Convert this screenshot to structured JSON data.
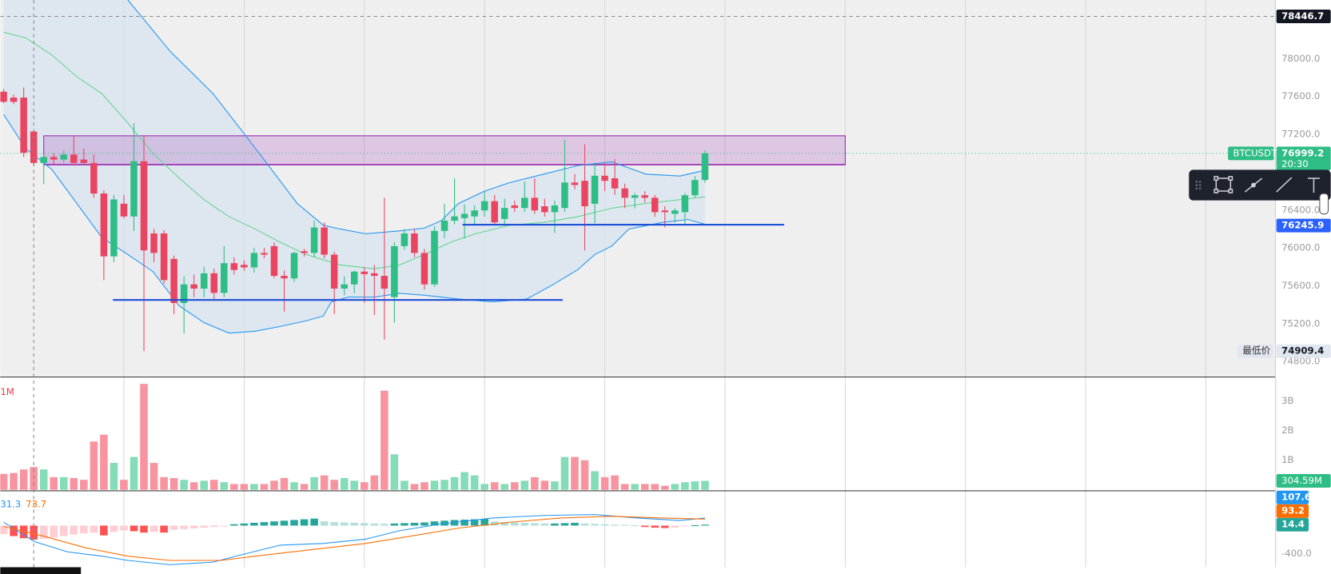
{
  "chart_data": {
    "type": "candlestick",
    "symbol": "BTCUSDT",
    "countdown": "20:30",
    "low_label": "最低价",
    "xlim": [
      -0.34,
      126.95
    ],
    "xticks": [
      12,
      24,
      36,
      48,
      60,
      72,
      84,
      96,
      108,
      120
    ],
    "ylim": [
      74645,
      78620
    ],
    "yticks": [
      {
        "value": 74800,
        "label": "74800.0"
      },
      {
        "value": 75200,
        "label": "75200.0"
      },
      {
        "value": 75600,
        "label": "75600.0"
      },
      {
        "value": 76000,
        "label": "76000.0"
      },
      {
        "value": 76400,
        "label": "76400.0"
      },
      {
        "value": 77200,
        "label": "77200.0"
      },
      {
        "value": 77600,
        "label": "77600.0"
      },
      {
        "value": 78000,
        "label": "78000.0"
      }
    ],
    "colors": {
      "up": "#2ebd85",
      "down": "#ea4560",
      "vol_up": "#84dcb8",
      "vol_down": "#f7949f"
    },
    "candles": {
      "open": [
        77651,
        77589,
        77589,
        77230,
        76898,
        76961,
        76934,
        76987,
        76934,
        76898,
        76575,
        75911,
        76467,
        76333,
        76916,
        76153,
        76153,
        75884,
        75418,
        75615,
        75570,
        75732,
        75525,
        75839,
        75821,
        75794,
        75947,
        76019,
        75705,
        75678,
        75965,
        75947,
        76216,
        75929,
        75570,
        75615,
        75750,
        75732,
        75705,
        75480,
        76019,
        76153,
        75947,
        75615,
        76180,
        76288,
        76315,
        76333,
        76396,
        76494,
        76306,
        76449,
        76422,
        76530,
        76440,
        76378,
        76422,
        76691,
        76709,
        76467,
        76763,
        76736,
        76629,
        76530,
        76557,
        76530,
        76396,
        76360,
        76378,
        76557,
        76718
      ],
      "high": [
        77680,
        77620,
        77696,
        77240,
        76990,
        77000,
        77030,
        77185,
        77050,
        76987,
        76610,
        76560,
        76560,
        77319,
        77185,
        76200,
        76190,
        75920,
        75700,
        75720,
        75800,
        75780,
        76019,
        75900,
        75870,
        76000,
        76000,
        76060,
        75760,
        75960,
        75990,
        76288,
        76270,
        75960,
        75700,
        75760,
        75800,
        75820,
        76530,
        76060,
        76200,
        76200,
        75990,
        76230,
        76467,
        76736,
        76460,
        76450,
        76600,
        76560,
        76520,
        76500,
        76700,
        76736,
        76520,
        76500,
        77140,
        76780,
        77095,
        76900,
        76900,
        76940,
        76680,
        76580,
        76600,
        76560,
        76440,
        76420,
        76580,
        76760,
        77030
      ],
      "low": [
        77530,
        77520,
        76961,
        76870,
        76674,
        76880,
        76900,
        76870,
        76870,
        76530,
        75660,
        75850,
        76310,
        76180,
        74909.4,
        75850,
        75620,
        75301,
        75095,
        75480,
        75480,
        75460,
        75480,
        75720,
        75760,
        75740,
        75890,
        75680,
        75328,
        75640,
        75910,
        75900,
        75890,
        75301,
        75500,
        75520,
        75420,
        75290,
        75032,
        75211,
        75980,
        75900,
        75560,
        75590,
        76100,
        76250,
        76100,
        76250,
        76330,
        76240,
        76250,
        76380,
        76380,
        76360,
        76330,
        76160,
        76380,
        76620,
        75974,
        76260,
        76600,
        76560,
        76420,
        76420,
        76480,
        76330,
        76216,
        76270,
        76240,
        76530,
        76690
      ],
      "close": [
        77544,
        77544,
        77005,
        76898,
        76961,
        76934,
        76987,
        76898,
        76898,
        76575,
        75911,
        76512,
        76333,
        76916,
        75974,
        75947,
        75660,
        75418,
        75615,
        75570,
        75732,
        75525,
        75839,
        75767,
        75794,
        75947,
        75929,
        75705,
        75678,
        75947,
        75947,
        76216,
        75929,
        75570,
        75615,
        75750,
        75723,
        75705,
        75570,
        76019,
        76153,
        75947,
        75615,
        76180,
        76288,
        76333,
        76360,
        76396,
        76494,
        76270,
        76422,
        76422,
        76530,
        76396,
        76378,
        76449,
        76691,
        76665,
        76440,
        76763,
        76709,
        76629,
        76530,
        76557,
        76530,
        76378,
        76378,
        76396,
        76557,
        76718,
        76999.2
      ]
    },
    "indicators": {
      "bb_upper": {
        "color": "#2196f3",
        "x": [
          0,
          6,
          10,
          12.4,
          16.6,
          20.9,
          24.2,
          26.8,
          29.3,
          31.9,
          33.6,
          36.1,
          39.5,
          42,
          43.7,
          45.4,
          48,
          50.5,
          53.9,
          57.3,
          60.7,
          64.1,
          67.5,
          70
        ],
        "values": [
          79500,
          79200,
          78850,
          78620,
          78080,
          77630,
          77180,
          76820,
          76470,
          76240,
          76200,
          76150,
          76180,
          76210,
          76290,
          76470,
          76600,
          76690,
          76780,
          76870,
          76910,
          76780,
          76760,
          76820
        ]
      },
      "bb_lower": {
        "color": "#2196f3",
        "x": [
          0,
          2.2,
          4.8,
          7.3,
          9.8,
          12.4,
          14.9,
          17.5,
          20,
          22.5,
          25.1,
          27.6,
          30.2,
          31.9,
          32.7,
          34.4,
          37,
          39.5,
          42,
          45.4,
          48.8,
          52.2,
          54.8,
          57.3,
          59,
          60.7,
          62.4,
          65.8,
          68.3,
          70
        ],
        "values": [
          77410,
          77050,
          76830,
          76470,
          76110,
          75930,
          75750,
          75390,
          75210,
          75100,
          75120,
          75170,
          75230,
          75280,
          75430,
          75480,
          75480,
          75520,
          75500,
          75460,
          75430,
          75460,
          75610,
          75770,
          75930,
          76020,
          76200,
          76270,
          76300,
          76250
        ]
      },
      "ma": {
        "color": "#5fd68f",
        "x": [
          0,
          2.2,
          4.8,
          7.3,
          9.8,
          12.4,
          14.9,
          17.5,
          20,
          22.5,
          25.1,
          27.6,
          30.2,
          33.6,
          37,
          39.5,
          42,
          44.6,
          47.1,
          50.5,
          53.9,
          57.3,
          60.7,
          64.1,
          67.5,
          70
        ],
        "values": [
          78280,
          78220,
          78040,
          77810,
          77630,
          77320,
          77000,
          76740,
          76510,
          76330,
          76200,
          76060,
          75930,
          75820,
          75780,
          75820,
          75930,
          76060,
          76150,
          76240,
          76270,
          76330,
          76420,
          76470,
          76510,
          76540
        ]
      },
      "band_fill": "#d7e3f0"
    },
    "crosshair": {
      "x": 3,
      "price": 78446.7
    },
    "zone": {
      "from": 4,
      "to": 84,
      "top": 77185,
      "bottom": 76880,
      "color": "#9c27b0"
    },
    "levels": [
      {
        "from": 10.9,
        "to": 55.8,
        "price": 75450,
        "color": "#1e4fd8"
      },
      {
        "from": 45.8,
        "to": 77.9,
        "price": 76245.9,
        "color": "#1e4fd8"
      }
    ],
    "volume": {
      "label": "1M",
      "ylim": [
        0,
        3.8
      ],
      "yticks": [
        {
          "value": 1,
          "label": "1B"
        },
        {
          "value": 2,
          "label": "2B"
        },
        {
          "value": 3,
          "label": "3B"
        }
      ],
      "values": [
        0.54,
        0.57,
        0.69,
        0.77,
        0.69,
        0.43,
        0.43,
        0.4,
        0.34,
        1.63,
        1.86,
        0.91,
        0.34,
        1.11,
        3.57,
        0.91,
        0.43,
        0.4,
        0.34,
        0.26,
        0.31,
        0.34,
        0.26,
        0.2,
        0.2,
        0.2,
        0.2,
        0.31,
        0.4,
        0.26,
        0.2,
        0.43,
        0.49,
        0.34,
        0.4,
        0.31,
        0.26,
        0.49,
        3.34,
        1.2,
        0.31,
        0.2,
        0.26,
        0.31,
        0.34,
        0.43,
        0.6,
        0.49,
        0.2,
        0.26,
        0.2,
        0.26,
        0.31,
        0.43,
        0.31,
        0.29,
        1.11,
        1.11,
        1.0,
        0.63,
        0.43,
        0.49,
        0.2,
        0.2,
        0.2,
        0.2,
        0.14,
        0.2,
        0.26,
        0.29,
        0.30459
      ],
      "last_value_label": "304.59M"
    },
    "macd": {
      "ylim": [
        -594,
        485
      ],
      "yticks": [
        {
          "value": -400,
          "label": "-400.0"
        }
      ],
      "legend": [
        "31.3",
        "73.7"
      ],
      "hist": [
        -120,
        -150,
        -180,
        -200,
        -190,
        -170,
        -150,
        -130,
        -110,
        -100,
        -140,
        -90,
        -70,
        -80,
        -100,
        -90,
        -100,
        -60,
        -50,
        -40,
        -30,
        -20,
        -10,
        20,
        30,
        40,
        50,
        60,
        70,
        80,
        90,
        100,
        60,
        50,
        45,
        40,
        35,
        30,
        25,
        30,
        35,
        40,
        45,
        60,
        70,
        80,
        85,
        90,
        95,
        60,
        50,
        45,
        40,
        35,
        30,
        30,
        35,
        40,
        30,
        25,
        20,
        15,
        10,
        5,
        -20,
        -30,
        -35,
        -30,
        -10,
        5,
        14.4
      ],
      "hist_colors": [
        "#26a69a",
        "#b2dfdb",
        "#ffcdd2",
        "#ff5252"
      ],
      "macd": {
        "color": "#2196f3",
        "x": [
          0,
          3.1,
          6.4,
          9.8,
          12.4,
          16.6,
          20.9,
          24.2,
          27.6,
          31.9,
          36.1,
          39.5,
          43.7,
          48.8,
          53.9,
          59,
          63.2,
          67.5,
          70
        ],
        "values": [
          48,
          -230,
          -376,
          -436,
          -497,
          -558,
          -521,
          -400,
          -279,
          -255,
          -194,
          -73,
          24,
          109,
          145,
          158,
          109,
          73,
          107.6
        ]
      },
      "signal": {
        "color": "#ff6d00",
        "x": [
          0,
          4.2,
          8.1,
          12.4,
          16.6,
          21.7,
          25.1,
          30.2,
          36.1,
          40.3,
          45.4,
          50.5,
          55.6,
          60.7,
          65.8,
          70
        ],
        "values": [
          -12,
          -158,
          -315,
          -436,
          -497,
          -497,
          -436,
          -352,
          -255,
          -158,
          -36,
          48,
          109,
          133,
          109,
          93.2
        ]
      }
    }
  }
}
